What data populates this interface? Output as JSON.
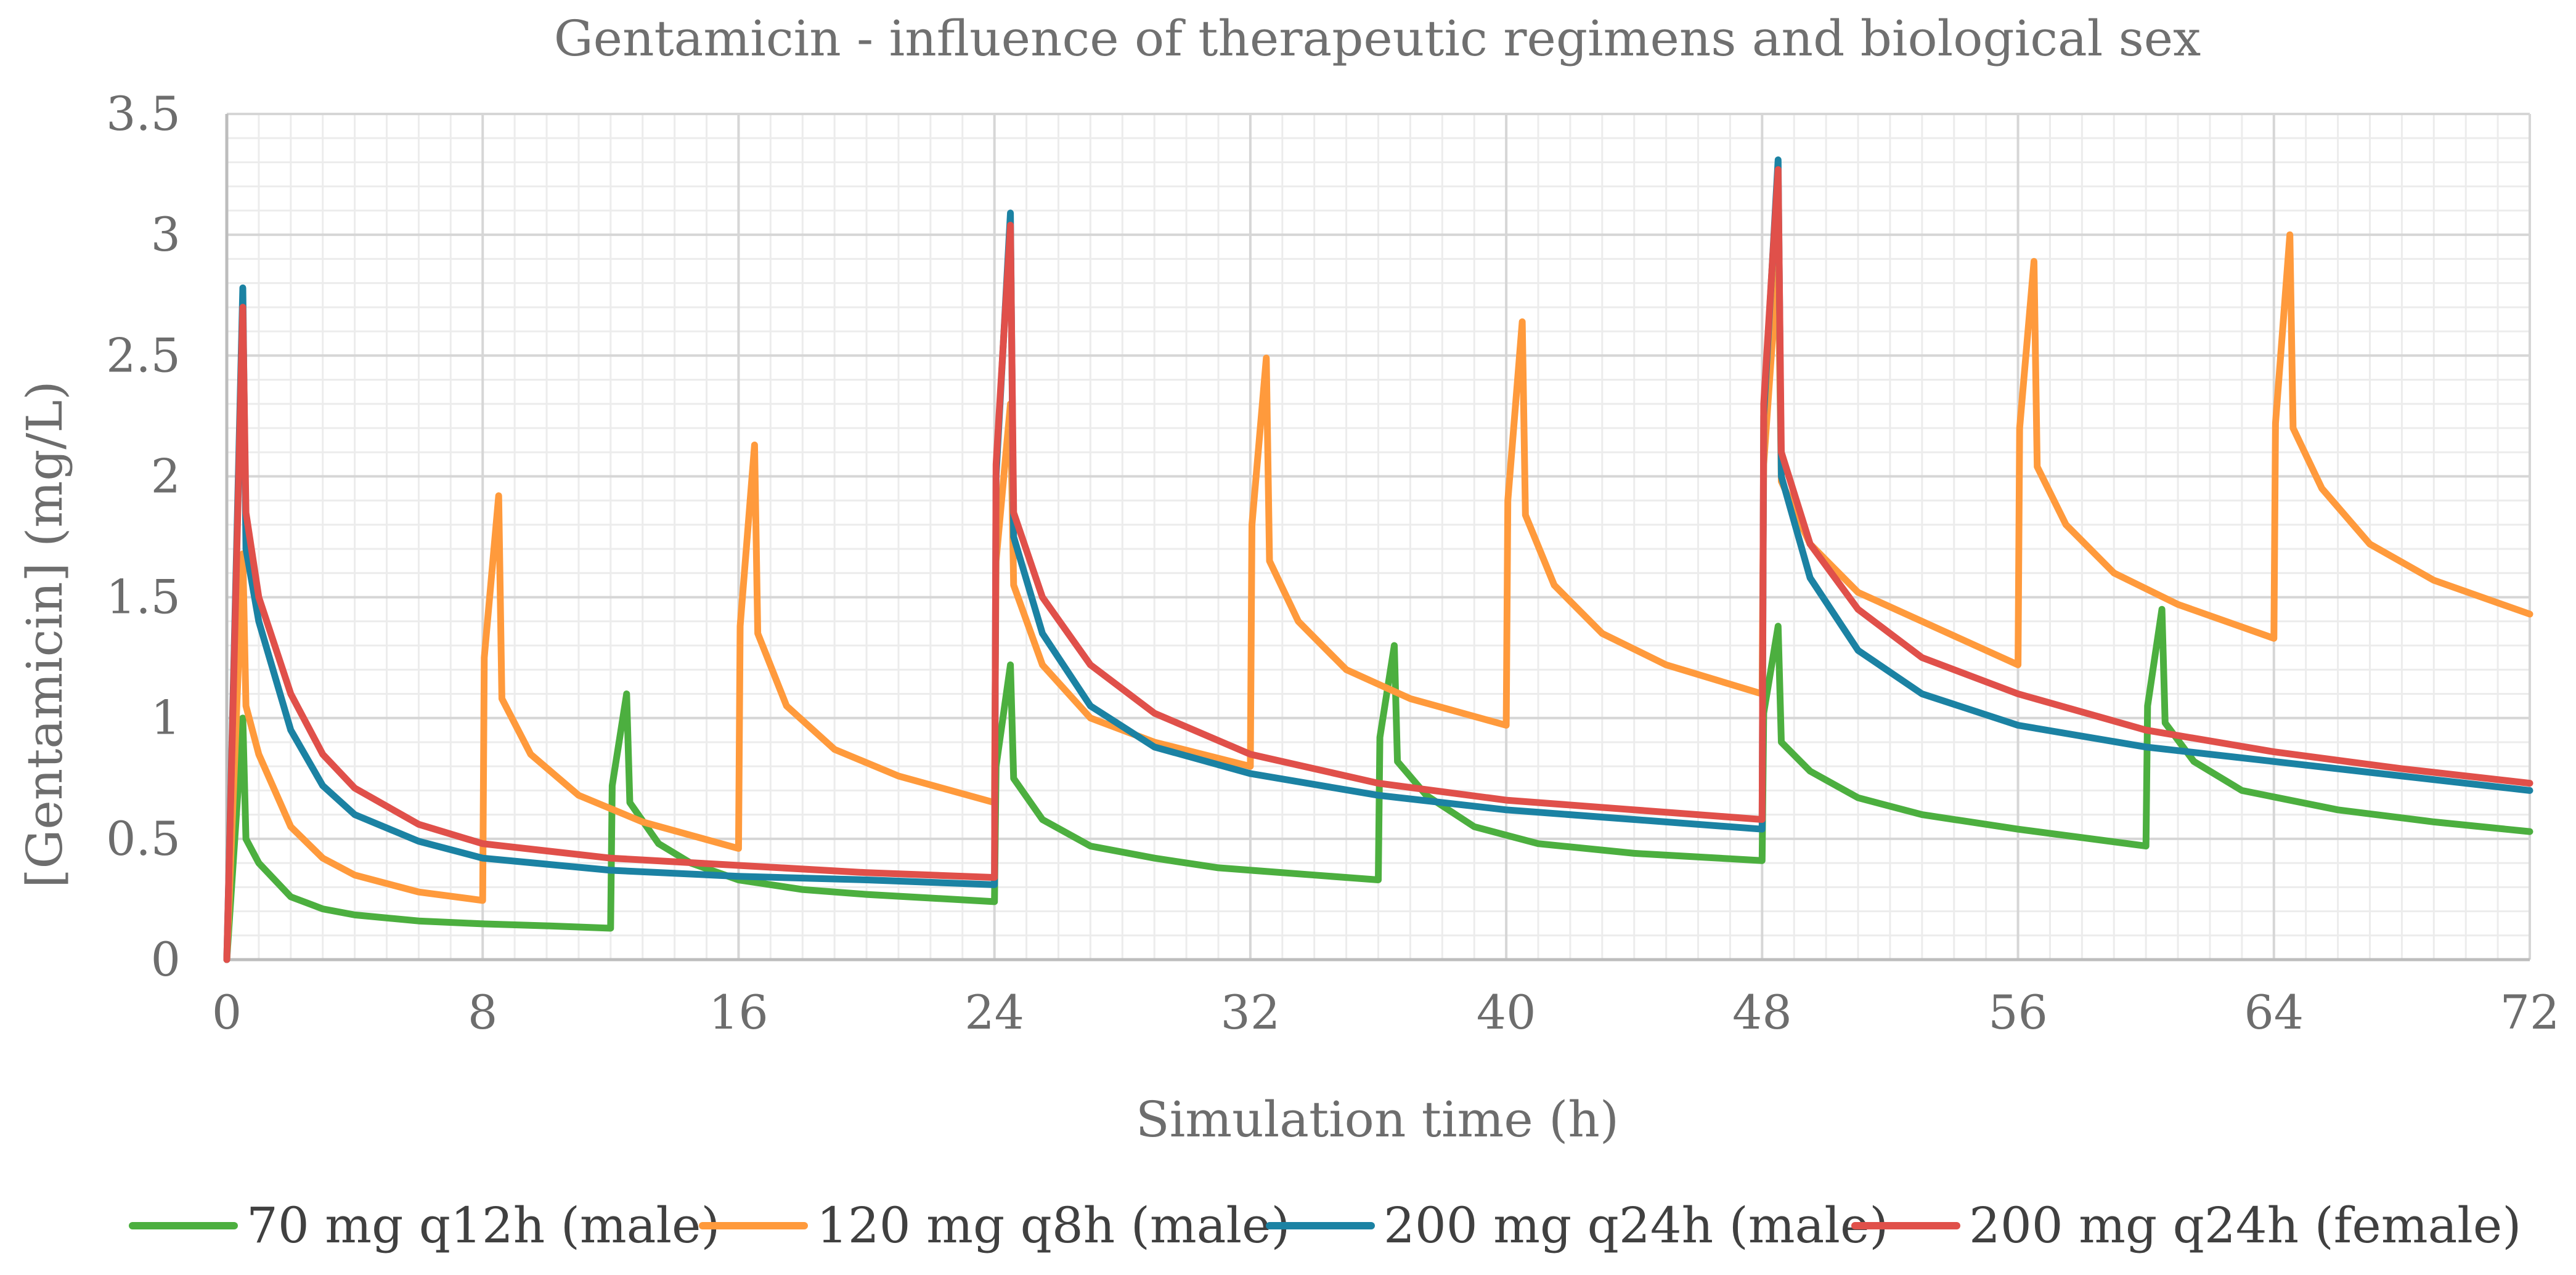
{
  "chart_data": {
    "type": "line",
    "title": "Gentamicin - influence of therapeutic regimens and biological sex",
    "xlabel": "Simulation time (h)",
    "ylabel": "[Gentamicin] (mg/L)",
    "xlim": [
      0,
      72
    ],
    "ylim": [
      0,
      3.5
    ],
    "x_ticks": [
      "0",
      "8",
      "16",
      "24",
      "32",
      "40",
      "48",
      "56",
      "64",
      "72"
    ],
    "y_ticks": [
      "0",
      "0.5",
      "1",
      "1.5",
      "2",
      "2.5",
      "3",
      "3.5"
    ],
    "grid": true,
    "legend_position": "bottom",
    "series": [
      {
        "name": "70 mg q12h (male)",
        "color": "#4caf3f",
        "points": [
          [
            0,
            0
          ],
          [
            0.5,
            1.0
          ],
          [
            0.6,
            0.5
          ],
          [
            1,
            0.4
          ],
          [
            2,
            0.26
          ],
          [
            3,
            0.21
          ],
          [
            4,
            0.185
          ],
          [
            6,
            0.16
          ],
          [
            8,
            0.148
          ],
          [
            10,
            0.14
          ],
          [
            12,
            0.13
          ],
          [
            12.05,
            0.72
          ],
          [
            12.5,
            1.1
          ],
          [
            12.6,
            0.65
          ],
          [
            13.5,
            0.48
          ],
          [
            14.5,
            0.4
          ],
          [
            16,
            0.33
          ],
          [
            18,
            0.29
          ],
          [
            20,
            0.27
          ],
          [
            22,
            0.255
          ],
          [
            24,
            0.24
          ],
          [
            24.05,
            0.8
          ],
          [
            24.5,
            1.22
          ],
          [
            24.6,
            0.75
          ],
          [
            25.5,
            0.58
          ],
          [
            27,
            0.47
          ],
          [
            29,
            0.42
          ],
          [
            31,
            0.38
          ],
          [
            34,
            0.35
          ],
          [
            36,
            0.33
          ],
          [
            36.05,
            0.92
          ],
          [
            36.5,
            1.3
          ],
          [
            36.6,
            0.82
          ],
          [
            37.5,
            0.68
          ],
          [
            39,
            0.55
          ],
          [
            41,
            0.48
          ],
          [
            44,
            0.44
          ],
          [
            48,
            0.41
          ],
          [
            48.05,
            1.02
          ],
          [
            48.5,
            1.38
          ],
          [
            48.6,
            0.9
          ],
          [
            49.5,
            0.78
          ],
          [
            51,
            0.67
          ],
          [
            53,
            0.6
          ],
          [
            56,
            0.54
          ],
          [
            60,
            0.47
          ],
          [
            60.05,
            1.05
          ],
          [
            60.5,
            1.45
          ],
          [
            60.6,
            0.98
          ],
          [
            61.5,
            0.82
          ],
          [
            63,
            0.7
          ],
          [
            66,
            0.62
          ],
          [
            69,
            0.57
          ],
          [
            72,
            0.53
          ]
        ]
      },
      {
        "name": "120 mg q8h (male)",
        "color": "#ff9a3c",
        "points": [
          [
            0,
            0
          ],
          [
            0.5,
            1.68
          ],
          [
            0.6,
            1.05
          ],
          [
            1,
            0.85
          ],
          [
            2,
            0.55
          ],
          [
            3,
            0.42
          ],
          [
            4,
            0.35
          ],
          [
            6,
            0.28
          ],
          [
            8,
            0.245
          ],
          [
            8.05,
            1.25
          ],
          [
            8.5,
            1.92
          ],
          [
            8.6,
            1.08
          ],
          [
            9.5,
            0.85
          ],
          [
            11,
            0.68
          ],
          [
            13,
            0.57
          ],
          [
            16,
            0.46
          ],
          [
            16.05,
            1.38
          ],
          [
            16.5,
            2.13
          ],
          [
            16.6,
            1.35
          ],
          [
            17.5,
            1.05
          ],
          [
            19,
            0.87
          ],
          [
            21,
            0.76
          ],
          [
            24,
            0.65
          ],
          [
            24.05,
            1.65
          ],
          [
            24.5,
            2.3
          ],
          [
            24.6,
            1.55
          ],
          [
            25.5,
            1.22
          ],
          [
            27,
            1.0
          ],
          [
            29,
            0.9
          ],
          [
            32,
            0.8
          ],
          [
            32.05,
            1.8
          ],
          [
            32.5,
            2.49
          ],
          [
            32.6,
            1.65
          ],
          [
            33.5,
            1.4
          ],
          [
            35,
            1.2
          ],
          [
            37,
            1.08
          ],
          [
            40,
            0.97
          ],
          [
            40.05,
            1.9
          ],
          [
            40.5,
            2.64
          ],
          [
            40.6,
            1.84
          ],
          [
            41.5,
            1.55
          ],
          [
            43,
            1.35
          ],
          [
            45,
            1.22
          ],
          [
            48,
            1.1
          ],
          [
            48.05,
            2.05
          ],
          [
            48.5,
            2.9
          ],
          [
            48.6,
            1.98
          ],
          [
            49.5,
            1.72
          ],
          [
            51,
            1.52
          ],
          [
            53,
            1.4
          ],
          [
            56,
            1.22
          ],
          [
            56.05,
            2.2
          ],
          [
            56.5,
            2.89
          ],
          [
            56.6,
            2.04
          ],
          [
            57.5,
            1.8
          ],
          [
            59,
            1.6
          ],
          [
            61,
            1.47
          ],
          [
            64,
            1.33
          ],
          [
            64.05,
            2.22
          ],
          [
            64.5,
            3.0
          ],
          [
            64.6,
            2.2
          ],
          [
            65.5,
            1.95
          ],
          [
            67,
            1.72
          ],
          [
            69,
            1.57
          ],
          [
            72,
            1.43
          ]
        ]
      },
      {
        "name": "200 mg q24h (male)",
        "color": "#1b82a3",
        "points": [
          [
            0,
            0
          ],
          [
            0.5,
            2.78
          ],
          [
            0.6,
            1.7
          ],
          [
            1,
            1.4
          ],
          [
            2,
            0.95
          ],
          [
            3,
            0.72
          ],
          [
            4,
            0.6
          ],
          [
            6,
            0.49
          ],
          [
            8,
            0.42
          ],
          [
            12,
            0.37
          ],
          [
            16,
            0.345
          ],
          [
            20,
            0.33
          ],
          [
            24,
            0.31
          ],
          [
            24.05,
            2.0
          ],
          [
            24.5,
            3.09
          ],
          [
            24.6,
            1.75
          ],
          [
            25.5,
            1.35
          ],
          [
            27,
            1.05
          ],
          [
            29,
            0.88
          ],
          [
            32,
            0.77
          ],
          [
            36,
            0.68
          ],
          [
            40,
            0.62
          ],
          [
            44,
            0.58
          ],
          [
            48,
            0.54
          ],
          [
            48.05,
            2.25
          ],
          [
            48.5,
            3.31
          ],
          [
            48.6,
            2.0
          ],
          [
            49.5,
            1.58
          ],
          [
            51,
            1.28
          ],
          [
            53,
            1.1
          ],
          [
            56,
            0.97
          ],
          [
            60,
            0.88
          ],
          [
            64,
            0.82
          ],
          [
            68,
            0.76
          ],
          [
            72,
            0.7
          ]
        ]
      },
      {
        "name": "200 mg q24h (female)",
        "color": "#e0504a",
        "points": [
          [
            0,
            0
          ],
          [
            0.5,
            2.7
          ],
          [
            0.6,
            1.85
          ],
          [
            1,
            1.5
          ],
          [
            2,
            1.1
          ],
          [
            3,
            0.85
          ],
          [
            4,
            0.71
          ],
          [
            6,
            0.56
          ],
          [
            8,
            0.48
          ],
          [
            12,
            0.42
          ],
          [
            16,
            0.39
          ],
          [
            20,
            0.36
          ],
          [
            24,
            0.34
          ],
          [
            24.05,
            2.05
          ],
          [
            24.5,
            3.04
          ],
          [
            24.6,
            1.85
          ],
          [
            25.5,
            1.5
          ],
          [
            27,
            1.22
          ],
          [
            29,
            1.02
          ],
          [
            32,
            0.85
          ],
          [
            36,
            0.73
          ],
          [
            40,
            0.66
          ],
          [
            44,
            0.62
          ],
          [
            48,
            0.58
          ],
          [
            48.05,
            2.3
          ],
          [
            48.5,
            3.27
          ],
          [
            48.6,
            2.1
          ],
          [
            49.5,
            1.72
          ],
          [
            51,
            1.45
          ],
          [
            53,
            1.25
          ],
          [
            56,
            1.1
          ],
          [
            60,
            0.95
          ],
          [
            64,
            0.86
          ],
          [
            68,
            0.79
          ],
          [
            72,
            0.73
          ]
        ]
      }
    ]
  }
}
